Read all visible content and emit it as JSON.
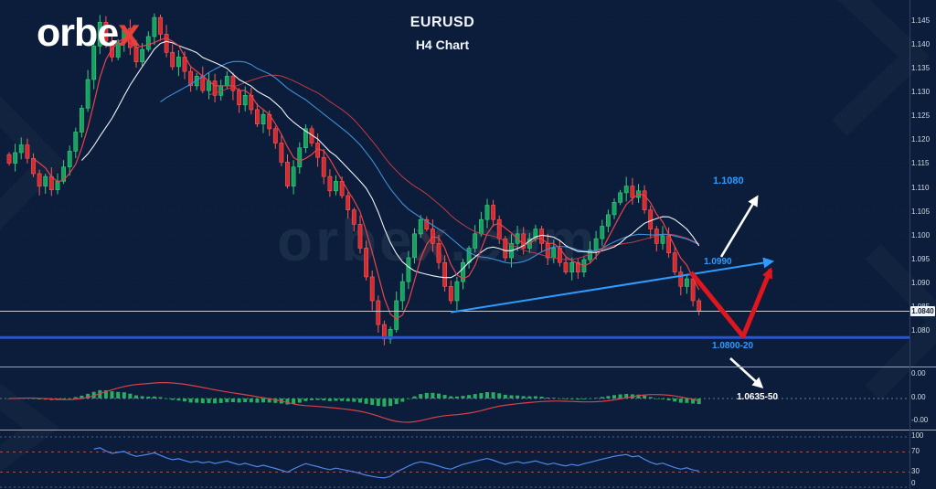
{
  "logo": {
    "main": "orbe",
    "accent": "x"
  },
  "title": {
    "symbol": "EURUSD",
    "subtitle": "H4 Chart"
  },
  "watermark": {
    "main": "orbe",
    "accent": "x",
    "suffix": ".com"
  },
  "annotations": {
    "upper_target": "1.1080",
    "breakout_level": "1.0990",
    "support_zone": "1.0800-20",
    "lower_target": "1.0635-50"
  },
  "price_axis": {
    "current_price": "1.0840",
    "labels": [
      "1.145",
      "1.140",
      "1.135",
      "1.130",
      "1.125",
      "1.120",
      "1.115",
      "1.110",
      "1.105",
      "1.100",
      "1.095",
      "1.090",
      "1.085",
      "1.080"
    ]
  },
  "macd_axis": {
    "labels": [
      "0.00",
      "0.00",
      "-0.00"
    ]
  },
  "rsi_axis": {
    "labels": [
      "100",
      "70",
      "30",
      "0"
    ]
  },
  "colors": {
    "background": "#0b1d3a",
    "candle_up": "#17a05e",
    "candle_up_bright": "#35d07f",
    "candle_down": "#d42a30",
    "candle_down_bright": "#ff5a55",
    "ma_fast": "#e8434b",
    "ma_slow": "#c23a44",
    "ma_mid": "#f0f3f7",
    "ma_long": "#3f8fd8",
    "trendline": "#2f9bff",
    "support_line": "#2b55c8",
    "annotation_blue": "#2e9bff",
    "histogram": "#27ae60",
    "signal_line": "#d84048",
    "rsi_line": "#4f86e8",
    "arrow_red": "#e0161f",
    "arrow_white": "#ffffff",
    "price_line": "#c9cdd6",
    "separator": "#9aa3b5",
    "axis_text": "#d5dbe6",
    "logo_accent": "#e8403a"
  },
  "chart_data": {
    "type": "candlestick",
    "symbol": "EURUSD",
    "timeframe": "H4",
    "title": "EURUSD H4 Chart",
    "price_range": {
      "top": 1.148,
      "bottom": 1.073
    },
    "label_prices": [
      1.145,
      1.14,
      1.135,
      1.13,
      1.125,
      1.12,
      1.115,
      1.11,
      1.105,
      1.1,
      1.095,
      1.09,
      1.085,
      1.08
    ],
    "closes": [
      1.115,
      1.1172,
      1.1188,
      1.116,
      1.1128,
      1.1102,
      1.1122,
      1.1094,
      1.1112,
      1.1142,
      1.1175,
      1.1215,
      1.1265,
      1.1325,
      1.1395,
      1.1445,
      1.1405,
      1.1372,
      1.1402,
      1.1432,
      1.1392,
      1.1362,
      1.1388,
      1.1415,
      1.1455,
      1.142,
      1.1382,
      1.1352,
      1.1372,
      1.1342,
      1.1312,
      1.1332,
      1.1302,
      1.1322,
      1.1292,
      1.1312,
      1.1332,
      1.1302,
      1.1272,
      1.1292,
      1.1262,
      1.1232,
      1.1252,
      1.1222,
      1.1192,
      1.1152,
      1.1102,
      1.1142,
      1.1182,
      1.1222,
      1.1192,
      1.1162,
      1.1122,
      1.1092,
      1.1112,
      1.1082,
      1.1052,
      1.1022,
      1.0972,
      1.0912,
      1.0862,
      1.0812,
      1.0782,
      1.0802,
      1.0862,
      1.0902,
      1.0952,
      1.1002,
      1.1032,
      1.1012,
      1.0982,
      1.0942,
      1.0892,
      1.0862,
      1.0902,
      1.0942,
      1.0972,
      1.1002,
      1.1032,
      1.1062,
      1.1032,
      1.0992,
      1.0952,
      1.0982,
      1.1002,
      1.0972,
      1.0992,
      1.1012,
      1.0982,
      1.0952,
      1.0972,
      1.0942,
      1.0922,
      1.0942,
      1.0922,
      1.0948,
      1.0968,
      1.0992,
      1.1018,
      1.1042,
      1.1068,
      1.1088,
      1.1102,
      1.1078,
      1.1092,
      1.1052,
      1.1012,
      1.0982,
      1.0998,
      1.0962,
      1.0922,
      1.0892,
      1.0908,
      1.0862,
      1.084
    ],
    "current_price": 1.084,
    "support_line_price": 1.0785,
    "trendline": {
      "start": {
        "index": 73,
        "price": 1.0838
      },
      "end": {
        "index": 126,
        "price": 1.0944
      }
    },
    "moving_average_periods": {
      "fast_red": 5,
      "mid_white": 13,
      "long_blue": 26,
      "slow_red": 34
    },
    "targets": {
      "upper": 1.108,
      "breakout": 1.099,
      "support_zone": [
        1.08,
        1.082
      ],
      "lower_zone": [
        1.0635,
        1.065
      ]
    },
    "indicators": {
      "histogram": "MACD(12,26,9)",
      "oscillator": "RSI(14)",
      "rsi_levels": [
        70,
        30
      ]
    }
  }
}
